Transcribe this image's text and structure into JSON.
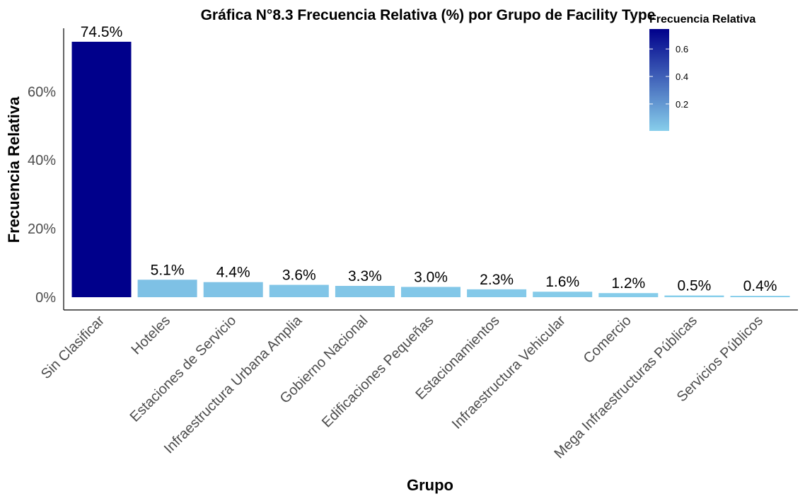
{
  "chart_data": {
    "type": "bar",
    "title": "Gráfica N°8.3 Frecuencia Relativa (%) por Grupo de Facility Type",
    "xlabel": "Grupo",
    "ylabel": "Frecuencia Relativa",
    "categories": [
      "Sin Clasificar",
      "Hoteles",
      "Estaciones de Servicio",
      "Infraestructura Urbana Amplia",
      "Gobierno Nacional",
      "Edificaciones Pequeñas",
      "Estacionamientos",
      "Infraestructura Vehicular",
      "Comercio",
      "Mega Infraestructuras Públicas",
      "Servicios Públicos"
    ],
    "values": [
      74.5,
      5.1,
      4.4,
      3.6,
      3.3,
      3.0,
      2.3,
      1.6,
      1.2,
      0.5,
      0.4
    ],
    "data_labels": [
      "74.5%",
      "5.1%",
      "4.4%",
      "3.6%",
      "3.3%",
      "3.0%",
      "2.3%",
      "1.6%",
      "1.2%",
      "0.5%",
      "0.4%"
    ],
    "yticks": [
      0,
      20,
      40,
      60
    ],
    "ytick_labels": [
      "0%",
      "20%",
      "40%",
      "60%"
    ],
    "ylim": [
      0,
      74.5
    ],
    "grid": false,
    "legend": {
      "title": "Frecuencia Relativa",
      "placement": "top-right",
      "ticks": [
        0.2,
        0.4,
        0.6
      ],
      "tick_labels": [
        "0.2",
        "0.4",
        "0.6"
      ],
      "range": [
        0.004,
        0.745
      ],
      "low_color": "#87CEEB",
      "high_color": "#00008B"
    }
  }
}
